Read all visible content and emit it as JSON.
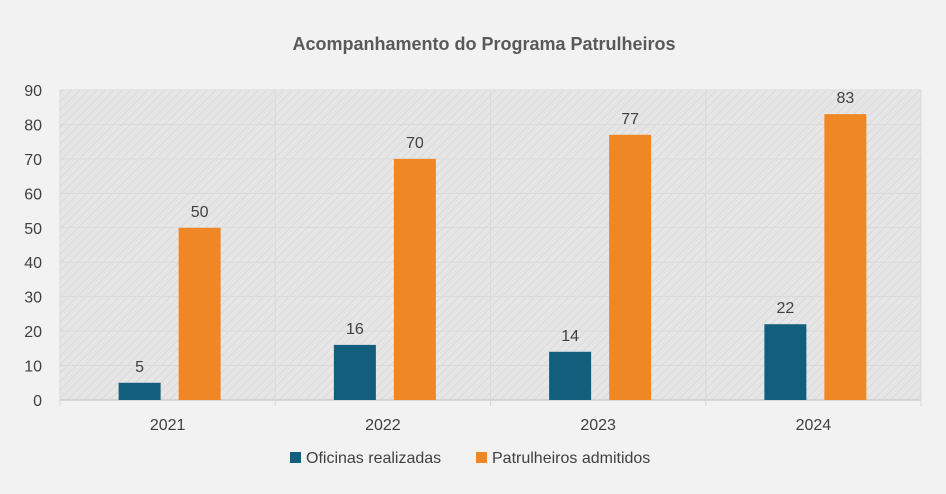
{
  "chart_data": {
    "type": "bar",
    "title": "Acompanhamento do Programa Patrulheiros",
    "categories": [
      "2021",
      "2022",
      "2023",
      "2024"
    ],
    "series": [
      {
        "name": "Oficinas realizadas",
        "values": [
          5,
          16,
          14,
          22
        ],
        "color": "#115e7d"
      },
      {
        "name": "Patrulheiros admitidos",
        "values": [
          50,
          70,
          77,
          83
        ],
        "color": "#f08726"
      }
    ],
    "ylim": [
      0,
      90
    ],
    "yticks": [
      0,
      10,
      20,
      30,
      40,
      50,
      60,
      70,
      80,
      90
    ],
    "grid": true,
    "legend": "bottom",
    "data_labels": true
  }
}
